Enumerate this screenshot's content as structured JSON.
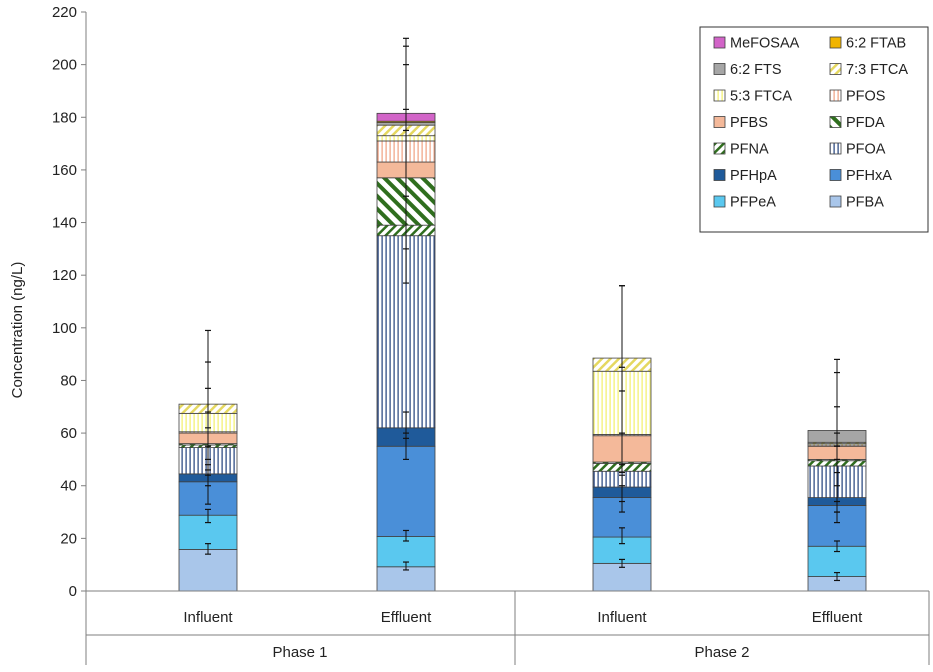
{
  "chart_data": {
    "type": "bar",
    "stacked": true,
    "ylabel": "Concentration (ng/L)",
    "ylim": [
      0,
      220
    ],
    "yticks": [
      0,
      20,
      40,
      60,
      80,
      100,
      120,
      140,
      160,
      180,
      200,
      220
    ],
    "grid": false,
    "legend_position": "top-right",
    "categories": [
      "Influent",
      "Effluent",
      "Influent",
      "Effluent"
    ],
    "groups": [
      {
        "label": "Phase 1",
        "categories": [
          0,
          1
        ]
      },
      {
        "label": "Phase 2",
        "categories": [
          2,
          3
        ]
      }
    ],
    "series": [
      {
        "name": "PFBA",
        "color": "#a9c6ea",
        "pattern": "solid",
        "values": [
          15.8,
          9.2,
          10.5,
          5.5
        ]
      },
      {
        "name": "PFPeA",
        "color": "#5ac8ef",
        "pattern": "solid",
        "values": [
          13.0,
          11.5,
          10.0,
          11.5
        ]
      },
      {
        "name": "PFHxA",
        "color": "#4a8fd8",
        "pattern": "solid",
        "values": [
          12.7,
          34.3,
          15.0,
          15.5
        ]
      },
      {
        "name": "PFHpA",
        "color": "#1f5a9a",
        "pattern": "solid",
        "values": [
          3.0,
          7.0,
          4.0,
          3.0
        ]
      },
      {
        "name": "PFOA",
        "color": "#1f3f7a",
        "pattern": "vlines",
        "values": [
          10.0,
          73.0,
          6.0,
          12.0
        ]
      },
      {
        "name": "PFNA",
        "color": "#2f6e1e",
        "pattern": "diag",
        "values": [
          1.0,
          4.0,
          3.0,
          2.0
        ]
      },
      {
        "name": "PFDA",
        "color": "#2f6e1e",
        "pattern": "diag-wide",
        "values": [
          0.5,
          18.0,
          0.5,
          0.5
        ]
      },
      {
        "name": "PFBS",
        "color": "#f4b99a",
        "pattern": "solid",
        "values": [
          4.0,
          6.0,
          10.0,
          5.0
        ]
      },
      {
        "name": "PFOS",
        "color": "#f0a080",
        "pattern": "vlines",
        "values": [
          0.5,
          8.0,
          0.5,
          0.5
        ]
      },
      {
        "name": "5:3 FTCA",
        "color": "#f3f06a",
        "pattern": "vlines",
        "values": [
          7.0,
          2.0,
          24.0,
          0.5
        ]
      },
      {
        "name": "7:3 FTCA",
        "color": "#e5d860",
        "pattern": "diag",
        "values": [
          3.5,
          4.0,
          5.0,
          0.5
        ]
      },
      {
        "name": "6:2 FTS",
        "color": "#a6a6a6",
        "pattern": "solid",
        "values": [
          0.0,
          1.0,
          0.0,
          4.5
        ]
      },
      {
        "name": "6:2 FTAB",
        "color": "#f0b400",
        "pattern": "solid",
        "values": [
          0.0,
          0.5,
          0.0,
          0.0
        ]
      },
      {
        "name": "MeFOSAA",
        "color": "#d264c8",
        "pattern": "solid",
        "values": [
          0.0,
          3.0,
          0.0,
          0.0
        ]
      }
    ],
    "error_bars": [
      [
        [
          14,
          18
        ],
        [
          26,
          31
        ],
        [
          33,
          46
        ],
        [
          40,
          48
        ],
        [
          44,
          77
        ],
        [
          50,
          62
        ],
        [
          55,
          87
        ],
        [
          68,
          99
        ]
      ],
      [
        [
          8,
          11
        ],
        [
          19,
          23
        ],
        [
          50,
          60
        ],
        [
          58,
          68
        ],
        [
          117,
          183
        ],
        [
          130,
          200
        ],
        [
          150,
          210
        ],
        [
          175,
          207
        ]
      ],
      [
        [
          9,
          12
        ],
        [
          18,
          24
        ],
        [
          30,
          40
        ],
        [
          34,
          44
        ],
        [
          45,
          60
        ],
        [
          48,
          76
        ],
        [
          60,
          116
        ],
        [
          85,
          116
        ]
      ],
      [
        [
          4,
          7
        ],
        [
          15,
          19
        ],
        [
          26,
          30
        ],
        [
          30,
          40
        ],
        [
          34,
          60
        ],
        [
          45,
          70
        ],
        [
          50,
          88
        ],
        [
          55,
          83
        ]
      ]
    ],
    "legend_order": [
      "MeFOSAA",
      "6:2 FTAB",
      "6:2 FTS",
      "7:3 FTCA",
      "5:3 FTCA",
      "PFOS",
      "PFBS",
      "PFDA",
      "PFNA",
      "PFOA",
      "PFHpA",
      "PFHxA",
      "PFPeA",
      "PFBA"
    ]
  }
}
